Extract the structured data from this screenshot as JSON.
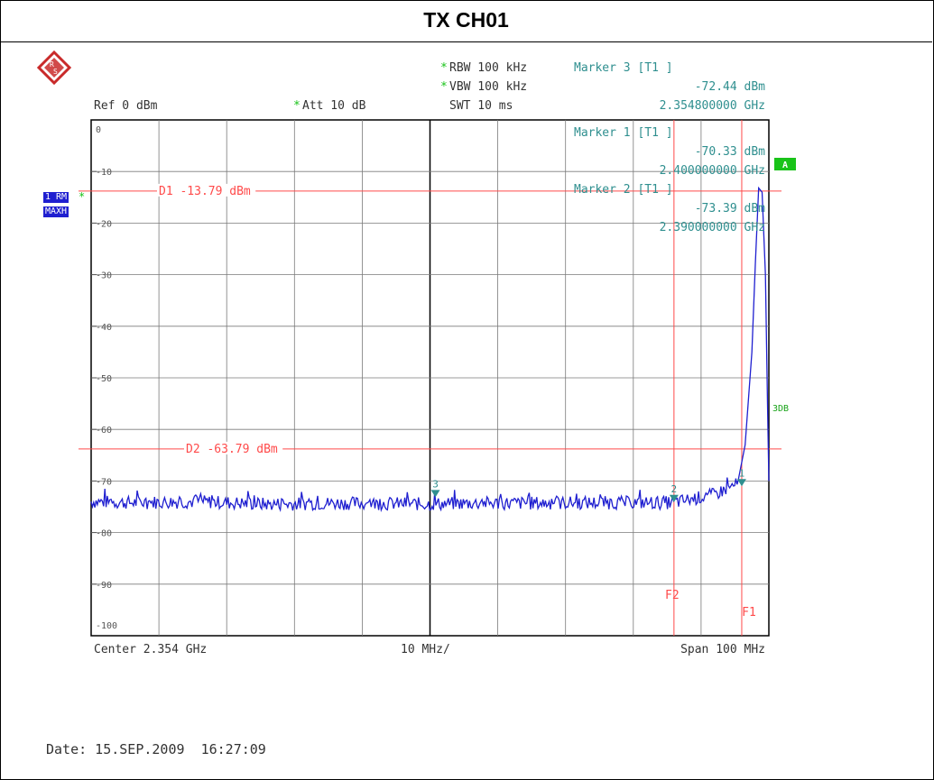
{
  "title": "TX CH01",
  "logo_icon": "rohde-schwarz-logo-icon",
  "settings": {
    "rbw": "RBW 100 kHz",
    "vbw": "VBW 100 kHz",
    "swt": "SWT 10 ms",
    "ref": "Ref  0 dBm",
    "att": "Att  10 dB"
  },
  "marker3": {
    "label": "Marker 3 [T1 ]",
    "level": "-72.44 dBm",
    "freq": "2.354800000 GHz"
  },
  "marker1": {
    "label": "Marker 1 [T1 ]",
    "level": "-70.33 dBm",
    "freq": "2.400000000 GHz"
  },
  "marker2": {
    "label": "Marker 2 [T1 ]",
    "level": "-73.39 dBm",
    "freq": "2.390000000 GHz"
  },
  "side_labels": {
    "trace_mode": "1 RM",
    "detector": "MAXH",
    "a_badge": "A",
    "threedb": "3DB",
    "star": "*"
  },
  "footer": {
    "center": "Center 2.354 GHz",
    "div": "10 MHz/",
    "span": "Span 100 MHz"
  },
  "date": "Date: 15.SEP.2009  16:27:09",
  "colors": {
    "trace": "#1f1fd0",
    "grid": "#7a7a7a",
    "lines": "#ff4a4a",
    "marker": "#2f8f8f",
    "badge": "#19c319"
  },
  "chart_data": {
    "type": "line",
    "x_range_ghz": [
      2.304,
      2.404
    ],
    "y_range_dbm": [
      -100,
      0
    ],
    "grid": true,
    "y_ticks": [
      "0",
      "-10",
      "-20",
      "-30",
      "-40",
      "-50",
      "-60",
      "-70",
      "-80",
      "-90",
      "-100"
    ],
    "display_lines": [
      {
        "label": "D1 -13.79 dBm",
        "value": -13.79
      },
      {
        "label": "D2 -63.79 dBm",
        "value": -63.79
      }
    ],
    "frequency_lines": [
      {
        "label": "F2",
        "value": 2.39
      },
      {
        "label": "F1",
        "value": 2.4
      }
    ],
    "markers": [
      {
        "label": "1",
        "x": 2.4,
        "y": -70.33
      },
      {
        "label": "2",
        "x": 2.39,
        "y": -73.39
      },
      {
        "label": "3",
        "x": 2.3548,
        "y": -72.44
      }
    ],
    "trace": {
      "noise_floor": [
        [
          2.304,
          -74.0
        ],
        [
          2.31,
          -74.2
        ],
        [
          2.32,
          -74.0
        ],
        [
          2.33,
          -74.5
        ],
        [
          2.34,
          -74.3
        ],
        [
          2.35,
          -74.4
        ],
        [
          2.354,
          -74.5
        ],
        [
          2.36,
          -74.3
        ],
        [
          2.37,
          -74.3
        ],
        [
          2.38,
          -74.2
        ],
        [
          2.39,
          -74.2
        ],
        [
          2.396,
          -72.6
        ],
        [
          2.3995,
          -70.5
        ]
      ],
      "peak": [
        [
          2.4005,
          -63.0
        ],
        [
          2.4015,
          -45.0
        ],
        [
          2.402,
          -28.0
        ],
        [
          2.4025,
          -13.2
        ],
        [
          2.403,
          -14.0
        ],
        [
          2.4035,
          -30.0
        ],
        [
          2.4038,
          -55.0
        ],
        [
          2.404,
          -70.0
        ]
      ]
    }
  }
}
